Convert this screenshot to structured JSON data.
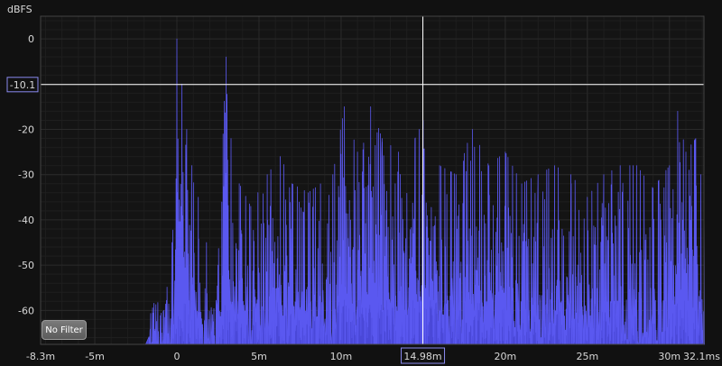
{
  "chart_data": {
    "type": "area",
    "ylabel": "dBFS",
    "xunit": "ms",
    "ylim": [
      -67.5,
      5
    ],
    "xlim": [
      -8.3,
      32.1
    ],
    "y_ticks": [
      "0",
      "-10",
      "-20",
      "-30",
      "-40",
      "-50",
      "-60"
    ],
    "x_ticks": [
      "-8.3m",
      "-5m",
      "0",
      "5m",
      "10m",
      "15m",
      "20m",
      "25m",
      "30m",
      "32.1ms"
    ],
    "cursor": {
      "x_label": "14.98m",
      "y_label": "-10.1",
      "x": 14.98,
      "y": -10.1
    },
    "series": [
      {
        "values": [
          {
            "x": -1.9,
            "y": -67
          },
          {
            "x": -0.8,
            "y": -60
          },
          {
            "x": -0.3,
            "y": -45
          },
          {
            "x": 0.0,
            "y": 0
          },
          {
            "x": 0.3,
            "y": -10
          },
          {
            "x": 0.6,
            "y": -20
          },
          {
            "x": 0.9,
            "y": -28
          },
          {
            "x": 1.3,
            "y": -35
          },
          {
            "x": 1.8,
            "y": -45
          },
          {
            "x": 2.5,
            "y": -50
          },
          {
            "x": 3.0,
            "y": -4
          },
          {
            "x": 3.3,
            "y": -22
          },
          {
            "x": 3.8,
            "y": -32
          },
          {
            "x": 4.5,
            "y": -37
          },
          {
            "x": 5.5,
            "y": -30
          },
          {
            "x": 6.3,
            "y": -26
          },
          {
            "x": 7.0,
            "y": -32
          },
          {
            "x": 8.0,
            "y": -34
          },
          {
            "x": 9.5,
            "y": -30
          },
          {
            "x": 10.2,
            "y": -15
          },
          {
            "x": 11.0,
            "y": -25
          },
          {
            "x": 11.8,
            "y": -15
          },
          {
            "x": 12.5,
            "y": -22
          },
          {
            "x": 13.5,
            "y": -25
          },
          {
            "x": 14.5,
            "y": -22
          },
          {
            "x": 15.0,
            "y": -18
          },
          {
            "x": 16.0,
            "y": -28
          },
          {
            "x": 17.0,
            "y": -30
          },
          {
            "x": 18.0,
            "y": -20
          },
          {
            "x": 19.0,
            "y": -28
          },
          {
            "x": 20.0,
            "y": -25
          },
          {
            "x": 21.0,
            "y": -32
          },
          {
            "x": 22.0,
            "y": -30
          },
          {
            "x": 23.0,
            "y": -28
          },
          {
            "x": 24.0,
            "y": -30
          },
          {
            "x": 25.0,
            "y": -35
          },
          {
            "x": 26.0,
            "y": -30
          },
          {
            "x": 27.0,
            "y": -28
          },
          {
            "x": 28.0,
            "y": -28
          },
          {
            "x": 29.0,
            "y": -33
          },
          {
            "x": 30.0,
            "y": -28
          },
          {
            "x": 30.5,
            "y": -16
          },
          {
            "x": 31.0,
            "y": -25
          },
          {
            "x": 31.6,
            "y": -22
          },
          {
            "x": 32.1,
            "y": -35
          }
        ]
      }
    ],
    "grid": true,
    "colors": {
      "fill": "#4a48d8",
      "stroke": "#5a58f0",
      "grid": "#2a2a2a",
      "axis": "#444444",
      "cursor": "#ffffff"
    }
  },
  "controls": {
    "filter_label": "No Filter"
  }
}
